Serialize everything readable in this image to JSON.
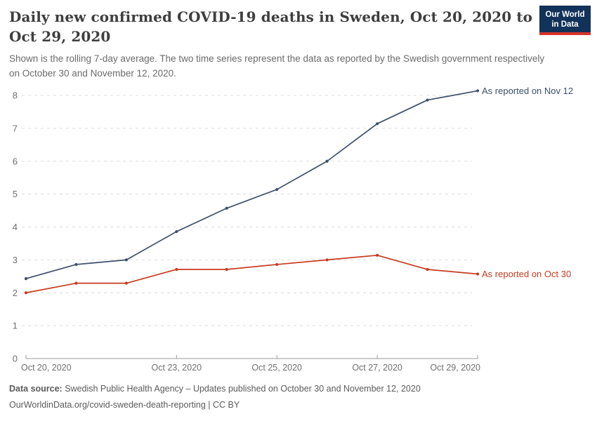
{
  "header": {
    "title": "Daily new confirmed COVID-19 deaths in Sweden, Oct 20, 2020 to Oct 29, 2020",
    "subtitle": "Shown is the rolling 7-day average. The two time series represent the data as reported by the Swedish government respectively on October 30 and November 12, 2020."
  },
  "logo": {
    "line1": "Our World",
    "line2": "in Data",
    "bg_color": "#12325a",
    "bar_color": "#d8352a"
  },
  "chart_data": {
    "type": "line",
    "x": [
      "Oct 20, 2020",
      "Oct 21, 2020",
      "Oct 22, 2020",
      "Oct 23, 2020",
      "Oct 24, 2020",
      "Oct 25, 2020",
      "Oct 26, 2020",
      "Oct 27, 2020",
      "Oct 28, 2020",
      "Oct 29, 2020"
    ],
    "x_tick_labels": [
      {
        "index": 0,
        "label": "Oct 20, 2020",
        "anchor": "start"
      },
      {
        "index": 3,
        "label": "Oct 23, 2020",
        "anchor": "middle"
      },
      {
        "index": 5,
        "label": "Oct 25, 2020",
        "anchor": "middle"
      },
      {
        "index": 7,
        "label": "Oct 27, 2020",
        "anchor": "middle"
      },
      {
        "index": 9,
        "label": "Oct 29, 2020",
        "anchor": "end"
      }
    ],
    "series": [
      {
        "name": "As reported on Nov 12",
        "color": "#3d4f6b",
        "values": [
          2.43,
          2.86,
          3.0,
          3.86,
          4.57,
          5.14,
          6.0,
          7.14,
          7.86,
          8.14
        ]
      },
      {
        "name": "As reported on Oct 30",
        "color": "#c73b1f",
        "values": [
          2.0,
          2.29,
          2.29,
          2.71,
          2.71,
          2.86,
          3.0,
          3.14,
          2.71,
          2.57
        ]
      }
    ],
    "title": "Daily new confirmed COVID-19 deaths in Sweden, Oct 20, 2020 to Oct 29, 2020",
    "xlabel": "",
    "ylabel": "",
    "ylim": [
      0,
      8
    ],
    "y_ticks": [
      0,
      1,
      2,
      3,
      4,
      5,
      6,
      7,
      8
    ],
    "grid": "dashed horizontal",
    "legend_position": "end-of-line labels"
  },
  "footer": {
    "source_label": "Data source:",
    "source_text": " Swedish Public Health Agency – Updates published on October 30 and November 12, 2020",
    "link_line": "OurWorldinData.org/covid-sweden-death-reporting | CC BY"
  }
}
